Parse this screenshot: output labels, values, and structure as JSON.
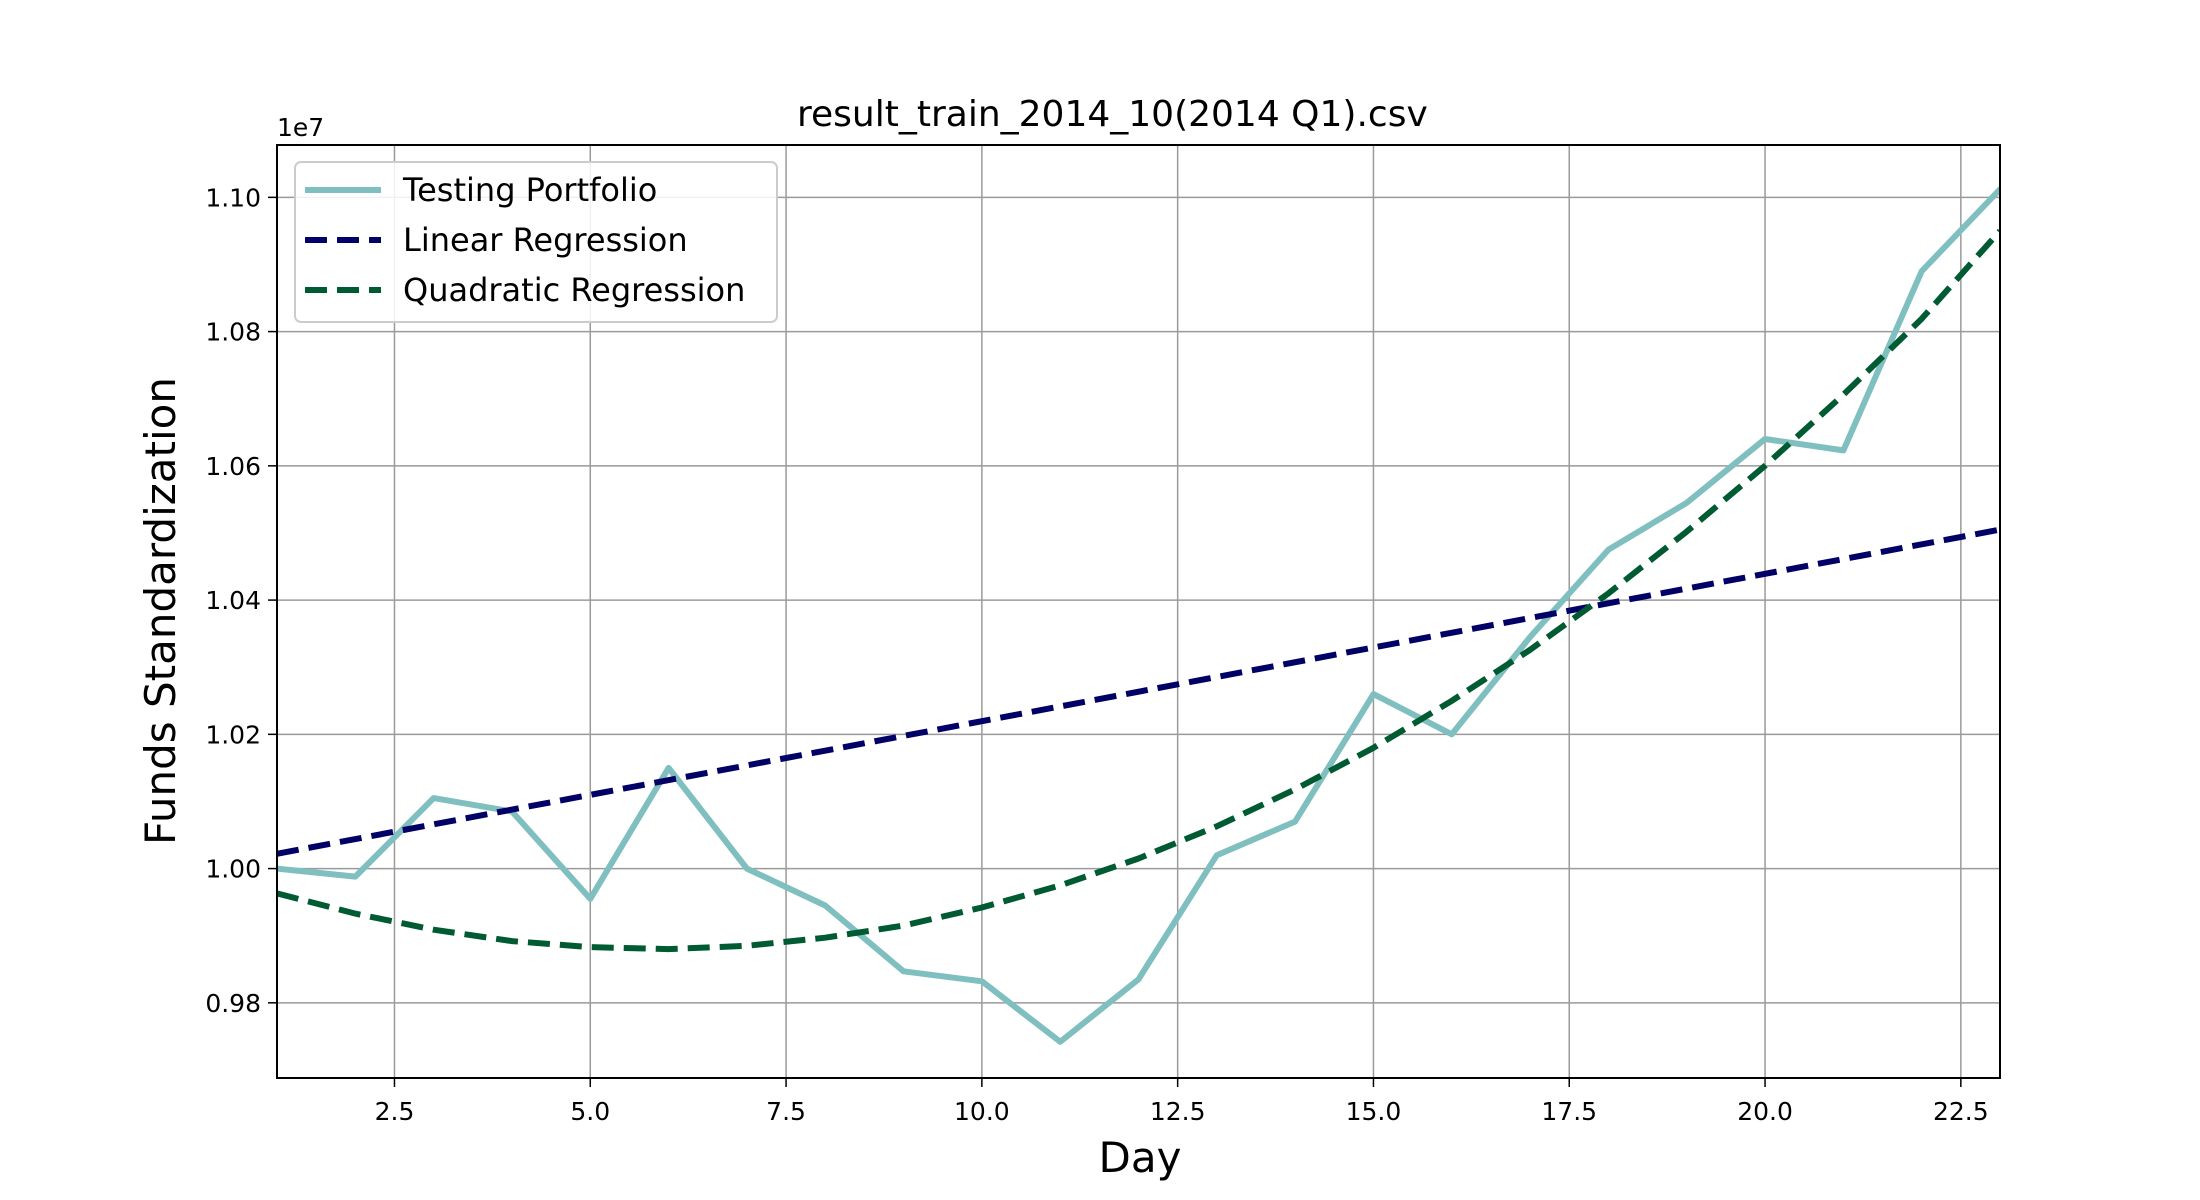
{
  "chart_data": {
    "type": "line",
    "title": "result_train_2014_10(2014 Q1).csv",
    "xlabel": "Day",
    "ylabel": "Funds Standardization",
    "y_offset_label": "1e7",
    "xlim": [
      1,
      23
    ],
    "ylim": [
      0.9688,
      1.1078
    ],
    "grid": true,
    "legend_position": "top-left",
    "x_ticks": [
      2.5,
      5.0,
      7.5,
      10.0,
      12.5,
      15.0,
      17.5,
      20.0,
      22.5
    ],
    "x_tick_labels": [
      "2.5",
      "5.0",
      "7.5",
      "10.0",
      "12.5",
      "15.0",
      "17.5",
      "20.0",
      "22.5"
    ],
    "y_ticks": [
      0.98,
      1.0,
      1.02,
      1.04,
      1.06,
      1.08,
      1.1
    ],
    "y_tick_labels": [
      "0.98",
      "1.00",
      "1.02",
      "1.04",
      "1.06",
      "1.08",
      "1.10"
    ],
    "series": [
      {
        "name": "Testing Portfolio",
        "color": "#80bfbf",
        "style": "solid",
        "x": [
          1,
          2,
          3,
          4,
          5,
          6,
          7,
          8,
          9,
          10,
          11,
          12,
          13,
          14,
          15,
          16,
          17,
          18,
          19,
          20,
          21,
          22,
          23
        ],
        "y": [
          1.0,
          0.9988,
          1.0105,
          1.0085,
          0.9955,
          1.015,
          1.0,
          0.9945,
          0.9847,
          0.9832,
          0.9742,
          0.9835,
          1.002,
          1.007,
          1.026,
          1.02,
          1.0345,
          1.0475,
          1.0545,
          1.064,
          1.0623,
          1.089,
          1.1012
        ]
      },
      {
        "name": "Linear Regression",
        "color": "#000066",
        "style": "dashed",
        "x": [
          1,
          23
        ],
        "y": [
          1.0022,
          1.0505
        ]
      },
      {
        "name": "Quadratic Regression",
        "color": "#005a32",
        "style": "dashed",
        "x": [
          1,
          2,
          3,
          4,
          5,
          6,
          7,
          8,
          9,
          10,
          11,
          12,
          13,
          14,
          15,
          16,
          17,
          18,
          19,
          20,
          21,
          22,
          23
        ],
        "y": [
          0.9963,
          0.9933,
          0.9909,
          0.9892,
          0.9883,
          0.988,
          0.9885,
          0.9897,
          0.9915,
          0.9942,
          0.9975,
          1.0015,
          1.0063,
          1.0118,
          1.018,
          1.025,
          1.0326,
          1.041,
          1.0502,
          1.06,
          1.0706,
          1.0819,
          1.095
        ]
      }
    ]
  }
}
